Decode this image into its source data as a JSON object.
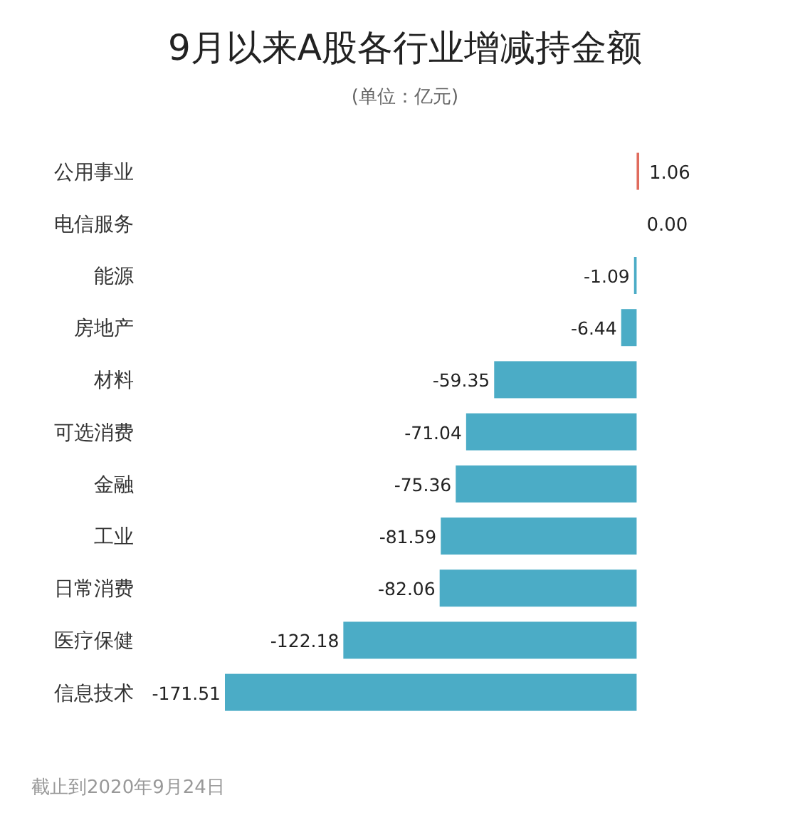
{
  "chart_data": {
    "type": "bar",
    "orientation": "horizontal",
    "title": "9月以来A股各行业增减持金额",
    "subtitle": "(单位：亿元)",
    "categories": [
      "公用事业",
      "电信服务",
      "能源",
      "房地产",
      "材料",
      "可选消费",
      "金融",
      "工业",
      "日常消费",
      "医疗保健",
      "信息技术"
    ],
    "values": [
      1.06,
      0.0,
      -1.09,
      -6.44,
      -59.35,
      -71.04,
      -75.36,
      -81.59,
      -82.06,
      -122.18,
      -171.51
    ],
    "value_labels": [
      "1.06",
      "0.00",
      "-1.09",
      "-6.44",
      "-59.35",
      "-71.04",
      "-75.36",
      "-81.59",
      "-82.06",
      "-122.18",
      "-171.51"
    ],
    "colors": [
      "#e06c5e",
      "#4bacc6",
      "#4bacc6",
      "#4bacc6",
      "#4bacc6",
      "#4bacc6",
      "#4bacc6",
      "#4bacc6",
      "#4bacc6",
      "#4bacc6",
      "#4bacc6"
    ],
    "annotations": [
      "截止到2020年9月24日"
    ]
  }
}
